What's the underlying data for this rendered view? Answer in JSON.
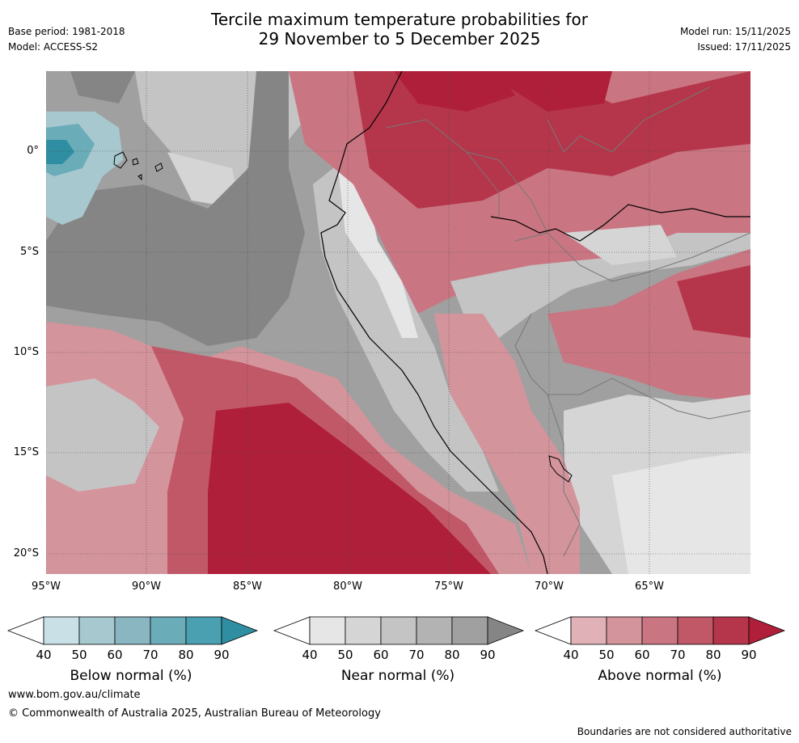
{
  "header": {
    "title_line1": "Tercile maximum temperature probabilities for",
    "title_line2": "29 November to 5 December 2025",
    "base_period": "Base period: 1981-2018",
    "model": "Model: ACCESS-S2",
    "model_run": "Model run: 15/11/2025",
    "issued": "Issued: 17/11/2025"
  },
  "map": {
    "lat_labels": [
      "0°",
      "5°S",
      "10°S",
      "15°S",
      "20°S"
    ],
    "lon_labels": [
      "95°W",
      "90°W",
      "85°W",
      "80°W",
      "75°W",
      "70°W",
      "65°W"
    ]
  },
  "legends": [
    {
      "title": "Below normal (%)",
      "ticks": [
        "40",
        "50",
        "60",
        "70",
        "80",
        "90"
      ],
      "colors": [
        "#ffffff",
        "#c9e1e6",
        "#a7c8cf",
        "#89b6c1",
        "#6aadb9",
        "#4aa0b0",
        "#2f8ea2"
      ]
    },
    {
      "title": "Near normal (%)",
      "ticks": [
        "40",
        "50",
        "60",
        "70",
        "80",
        "90"
      ],
      "colors": [
        "#ffffff",
        "#e6e6e6",
        "#d5d5d5",
        "#c4c4c4",
        "#b3b3b3",
        "#a0a0a0",
        "#858585"
      ]
    },
    {
      "title": "Above normal (%)",
      "ticks": [
        "40",
        "50",
        "60",
        "70",
        "80",
        "90"
      ],
      "colors": [
        "#ffffff",
        "#e0b2b8",
        "#d4949c",
        "#c97682",
        "#c15868",
        "#b5364b",
        "#b01f3a"
      ]
    }
  ],
  "footer": {
    "url": "www.bom.gov.au/climate",
    "copyright": "© Commonwealth of Australia 2025, Australian Bureau of Meteorology",
    "disclaimer": "Boundaries are not considered authoritative"
  }
}
